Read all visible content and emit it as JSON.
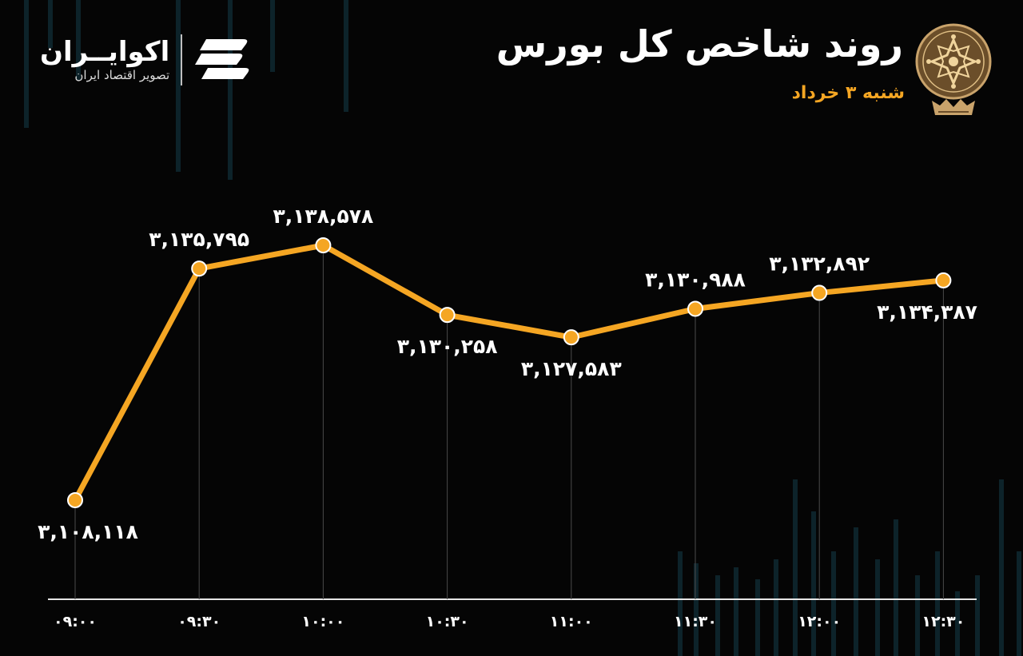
{
  "header": {
    "title": "روند شاخص کل بورس",
    "subtitle": "شنبه ۳ خرداد"
  },
  "brand": {
    "name": "اکوایــران",
    "tagline": "تصویر اقتصاد ایران",
    "seal_icon": "tehran-stock-exchange-seal-icon",
    "logo_icon": "ekoiran-stripes-logo-icon"
  },
  "colors": {
    "background": "#050505",
    "line": "#f5a623",
    "text": "#ffffff",
    "accent": "#f5a623",
    "guide": "#4a4a4a",
    "background_bars": "#0f2a33"
  },
  "chart_data": {
    "type": "line",
    "title": "روند شاخص کل بورس",
    "xlabel": "",
    "ylabel": "",
    "categories": [
      "۰۹:۰۰",
      "۰۹:۳۰",
      "۱۰:۰۰",
      "۱۰:۳۰",
      "۱۱:۰۰",
      "۱۱:۳۰",
      "۱۲:۰۰",
      "۱۲:۳۰"
    ],
    "values": [
      3108118,
      3135795,
      3138578,
      3130258,
      3127583,
      3130988,
      3132892,
      3134387
    ],
    "data_labels": [
      "۳,۱۰۸,۱۱۸",
      "۳,۱۳۵,۷۹۵",
      "۳,۱۳۸,۵۷۸",
      "۳,۱۳۰,۲۵۸",
      "۳,۱۲۷,۵۸۳",
      "۳,۱۳۰,۹۸۸",
      "۳,۱۳۲,۸۹۲",
      "۳,۱۳۴,۳۸۷"
    ],
    "label_placement": [
      "below",
      "above",
      "above",
      "below",
      "below",
      "above",
      "above",
      "below"
    ],
    "grid": false,
    "legend": "none"
  }
}
